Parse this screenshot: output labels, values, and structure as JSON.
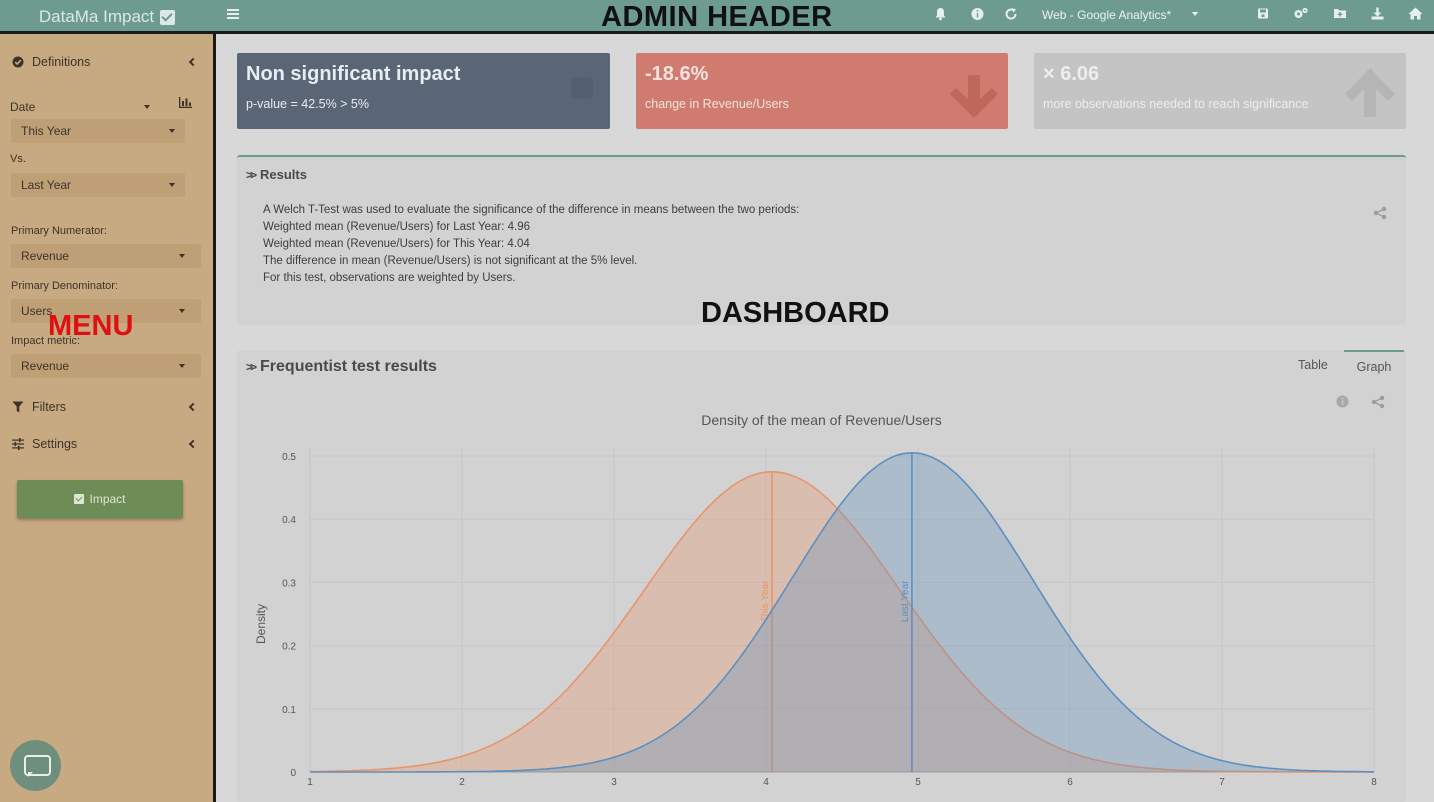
{
  "header": {
    "app_name": "DataMa Impact",
    "annotation": "ADMIN HEADER",
    "datasource": "Web - Google Analytics*",
    "icons": [
      "menu-icon",
      "bell-icon",
      "info-icon",
      "refresh-icon",
      "save-icon",
      "settings-icon",
      "folder-add-icon",
      "download-icon",
      "home-icon"
    ]
  },
  "sidebar": {
    "definitions_label": "Definitions",
    "date_label": "Date",
    "date_value": "This Year",
    "vs_label": "Vs.",
    "vs_value": "Last Year",
    "numerator_label": "Primary Numerator:",
    "numerator_value": "Revenue",
    "denominator_label": "Primary Denominator:",
    "denominator_value": "Users",
    "metric_label": "Impact metric:",
    "metric_value": "Revenue",
    "filters_label": "Filters",
    "settings_label": "Settings",
    "impact_button": "Impact",
    "annotation": "MENU"
  },
  "infoboxes": [
    {
      "value": "Non significant impact",
      "caption": "p-value = 42.5% > 5%",
      "color": "#5a6676"
    },
    {
      "value": "-18.6%",
      "caption": "change in Revenue/Users",
      "color": "#cf7b6f"
    },
    {
      "value": "× 6.06",
      "caption": "more observations needed to reach significance",
      "color": "#c4c4c4"
    }
  ],
  "results": {
    "title": "Results",
    "lines": [
      "A Welch T-Test was used to evaluate the significance of the difference in means between the two periods:",
      "Weighted mean (Revenue/Users) for Last Year: 4.96",
      "Weighted mean (Revenue/Users) for This Year: 4.04",
      "The difference in mean (Revenue/Users) is not significant at the 5% level.",
      "For this test, observations are weighted by Users."
    ]
  },
  "dashboard_annotation": "DASHBOARD",
  "frequentist": {
    "title": "Frequentist test results",
    "tabs": [
      "Table",
      "Graph"
    ],
    "active_tab": "Graph"
  },
  "chart_data": {
    "type": "area",
    "title": "Density of the mean of Revenue/Users",
    "xlabel": "",
    "ylabel": "Density",
    "xlim": [
      1,
      8
    ],
    "ylim": [
      0,
      0.5
    ],
    "x_ticks": [
      1,
      2,
      3,
      4,
      5,
      6,
      7,
      8
    ],
    "y_ticks": [
      0,
      0.1,
      0.2,
      0.3,
      0.4,
      0.5
    ],
    "grid": true,
    "series": [
      {
        "name": "This Year",
        "mean": 4.04,
        "peak_density": 0.475,
        "color": "#e8956a"
      },
      {
        "name": "Last Year",
        "mean": 4.96,
        "peak_density": 0.505,
        "color": "#5e8fbf"
      }
    ]
  }
}
